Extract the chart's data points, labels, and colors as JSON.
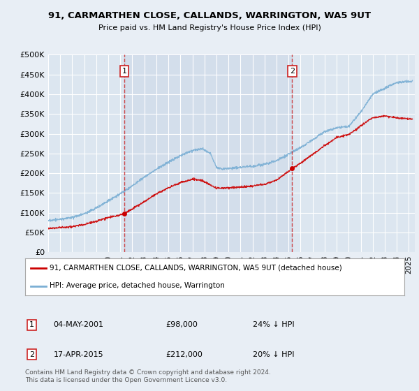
{
  "title": "91, CARMARTHEN CLOSE, CALLANDS, WARRINGTON, WA5 9UT",
  "subtitle": "Price paid vs. HM Land Registry's House Price Index (HPI)",
  "ylabel_ticks": [
    "£0",
    "£50K",
    "£100K",
    "£150K",
    "£200K",
    "£250K",
    "£300K",
    "£350K",
    "£400K",
    "£450K",
    "£500K"
  ],
  "ytick_values": [
    0,
    50000,
    100000,
    150000,
    200000,
    250000,
    300000,
    350000,
    400000,
    450000,
    500000
  ],
  "ylim": [
    0,
    500000
  ],
  "xlim_start": 1995.0,
  "xlim_end": 2025.5,
  "xtick_years": [
    1995,
    1996,
    1997,
    1998,
    1999,
    2000,
    2001,
    2002,
    2003,
    2004,
    2005,
    2006,
    2007,
    2008,
    2009,
    2010,
    2011,
    2012,
    2013,
    2014,
    2015,
    2016,
    2017,
    2018,
    2019,
    2020,
    2021,
    2022,
    2023,
    2024,
    2025
  ],
  "property_color": "#cc0000",
  "hpi_color": "#7bafd4",
  "background_color": "#e8eef5",
  "plot_bg_color": "#dce6f0",
  "grid_color": "#ffffff",
  "sale1_date": 2001.33,
  "sale1_price": 98000,
  "sale1_label": "1",
  "sale2_date": 2015.29,
  "sale2_price": 212000,
  "sale2_label": "2",
  "legend_property": "91, CARMARTHEN CLOSE, CALLANDS, WARRINGTON, WA5 9UT (detached house)",
  "legend_hpi": "HPI: Average price, detached house, Warrington",
  "annotation1_date": "04-MAY-2001",
  "annotation1_price": "£98,000",
  "annotation1_hpi": "24% ↓ HPI",
  "annotation2_date": "17-APR-2015",
  "annotation2_price": "£212,000",
  "annotation2_hpi": "20% ↓ HPI",
  "footer": "Contains HM Land Registry data © Crown copyright and database right 2024.\nThis data is licensed under the Open Government Licence v3.0."
}
